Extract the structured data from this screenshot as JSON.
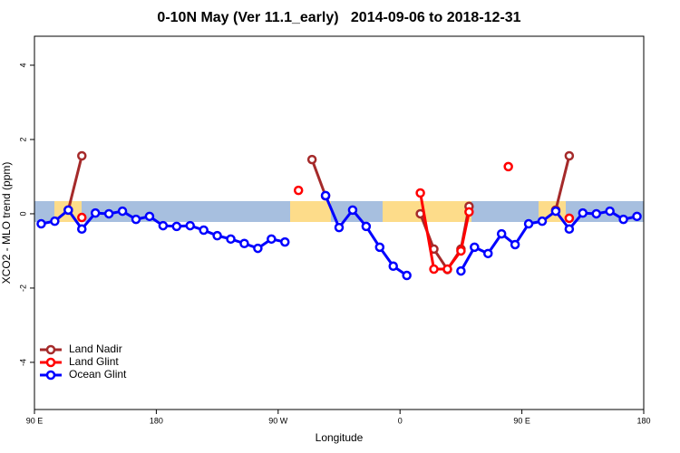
{
  "chart_data": {
    "type": "line",
    "title": "0-10N May (Ver 11.1_early)   2014-09-06 to 2018-12-31",
    "x_label": "Longitude",
    "y_label": "XCO2 - MLO trend (ppm)",
    "xlim": [
      90,
      540
    ],
    "ylim": [
      -5.27,
      4.78
    ],
    "xticks": [
      {
        "value": 90,
        "label": "90 E"
      },
      {
        "value": 180,
        "label": "180"
      },
      {
        "value": 270,
        "label": "90 W"
      },
      {
        "value": 360,
        "label": "0"
      },
      {
        "value": 450,
        "label": "90 E"
      },
      {
        "value": 540,
        "label": "180"
      }
    ],
    "yticks": [
      -4,
      -2,
      0,
      2,
      4
    ],
    "legend": "bottom-left",
    "series": [
      {
        "name": "Land Nadir",
        "color": "#a52a2a",
        "x": [
          115,
          125,
          null,
          295,
          305,
          null,
          375,
          385,
          395,
          405,
          411,
          null,
          475,
          485
        ],
        "values": [
          0.1,
          1.56,
          null,
          1.46,
          0.48,
          null,
          0.0,
          -0.95,
          -1.5,
          -0.95,
          0.2,
          null,
          0.1,
          1.56
        ]
      },
      {
        "name": "Land Glint",
        "color": "#ff0000",
        "x": [
          125,
          null,
          285,
          null,
          375,
          385,
          395,
          405,
          411,
          null,
          440,
          null,
          485
        ],
        "values": [
          -0.1,
          null,
          0.63,
          null,
          0.56,
          -1.49,
          -1.49,
          -1.0,
          0.05,
          null,
          1.27,
          null,
          -0.12
        ]
      },
      {
        "name": "Ocean Glint",
        "color": "#0000ff",
        "x": [
          95,
          105,
          115,
          125,
          135,
          145,
          155,
          165,
          175,
          185,
          195,
          205,
          215,
          225,
          235,
          245,
          255,
          265,
          275,
          null,
          305,
          315,
          325,
          335,
          345,
          355,
          365,
          null,
          405,
          415,
          425,
          435,
          445,
          455,
          465,
          475,
          485,
          495,
          505,
          515,
          525,
          535
        ],
        "values": [
          -0.27,
          -0.2,
          0.1,
          -0.41,
          0.02,
          0.0,
          0.07,
          -0.15,
          -0.07,
          -0.32,
          -0.34,
          -0.32,
          -0.44,
          -0.59,
          -0.68,
          -0.8,
          -0.93,
          -0.68,
          -0.76,
          null,
          0.49,
          -0.37,
          0.1,
          -0.34,
          -0.9,
          -1.41,
          -1.66,
          null,
          -1.54,
          -0.9,
          -1.07,
          -0.54,
          -0.83,
          -0.27,
          -0.2,
          0.07,
          -0.41,
          0.02,
          0.0,
          0.07,
          -0.15,
          -0.07
        ]
      }
    ]
  }
}
